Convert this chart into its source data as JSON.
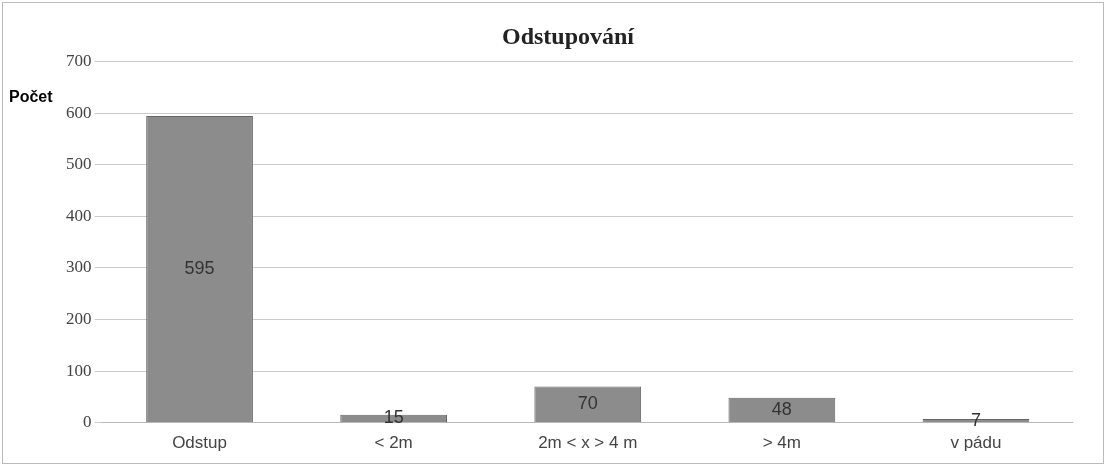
{
  "chart_data": {
    "type": "bar",
    "title": "Odstupování",
    "ylabel": "Počet",
    "categories": [
      "Odstup",
      "< 2m",
      "2m < x > 4 m",
      "> 4m",
      "v pádu"
    ],
    "values": [
      595,
      15,
      70,
      48,
      7
    ],
    "color": "#8c8c8c",
    "ylim": [
      0,
      700
    ],
    "yticks": [
      0,
      100,
      200,
      300,
      400,
      500,
      600,
      700
    ],
    "grid": "y",
    "data_labels": true,
    "legend": false
  }
}
